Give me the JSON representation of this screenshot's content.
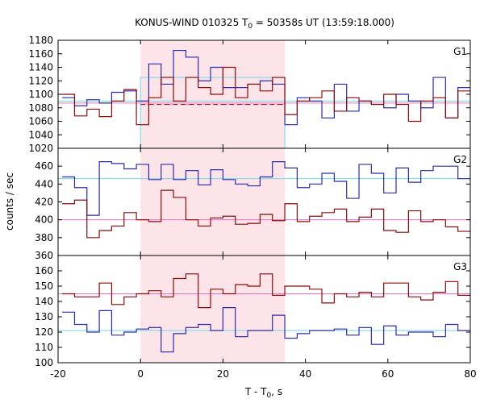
{
  "title": {
    "prefix": "KONUS-WIND 010325 T",
    "sub": "0",
    "suffix": " = 50358s UT (13:59:18.000)"
  },
  "xlabel": {
    "prefix": "T - T",
    "sub": "0",
    "suffix": ", s"
  },
  "ylabel": "counts / sec",
  "chart_data": {
    "type": "line",
    "step": true,
    "xlim": [
      -20,
      80
    ],
    "x_ticks": [
      -20,
      0,
      20,
      40,
      60,
      80
    ],
    "bin_edges": [
      -19,
      -16,
      -13,
      -10,
      -7,
      -4,
      -1,
      2,
      5,
      8,
      11,
      14,
      17,
      20,
      23,
      26,
      29,
      32,
      35,
      38,
      41,
      44,
      47,
      50,
      53,
      56,
      59,
      62,
      65,
      68,
      71,
      74,
      77,
      80
    ],
    "shaded_interval": [
      0,
      35
    ],
    "panels": [
      {
        "label": "G1",
        "ylim": [
          1020,
          1180
        ],
        "y_ticks": [
          1020,
          1040,
          1060,
          1080,
          1100,
          1120,
          1140,
          1160,
          1180
        ],
        "series": [
          {
            "color": "#2b2bb0",
            "values": [
              1095,
              1083,
              1092,
              1087,
              1103,
              1105,
              1090,
              1145,
              1115,
              1165,
              1155,
              1120,
              1140,
              1110,
              1110,
              1115,
              1120,
              1115,
              1055,
              1095,
              1090,
              1065,
              1115,
              1075,
              1090,
              1085,
              1080,
              1100,
              1090,
              1080,
              1125,
              1065,
              1110
            ]
          },
          {
            "color": "#8b0a0a",
            "values": [
              1100,
              1068,
              1078,
              1067,
              1090,
              1107,
              1055,
              1095,
              1125,
              1090,
              1125,
              1110,
              1100,
              1140,
              1095,
              1115,
              1105,
              1125,
              1070,
              1090,
              1095,
              1105,
              1075,
              1095,
              1090,
              1085,
              1100,
              1085,
              1060,
              1090,
              1095,
              1065,
              1105
            ]
          }
        ],
        "background_levels": [
          {
            "color": "#e873c8",
            "value": 1085,
            "dash": "4,3",
            "interval": [
              0,
              35
            ]
          },
          {
            "color": "#8b0a0a",
            "value": 1085,
            "dash": "6,4",
            "interval": [
              0,
              35
            ]
          },
          {
            "color": "#70d8ec",
            "value": 1125,
            "dash": "",
            "interval": [
              0,
              35
            ],
            "box": true
          },
          {
            "color": "#70d8ec",
            "value": 1090,
            "dash": "",
            "interval": [
              -20,
              80
            ]
          },
          {
            "color": "#e873c8",
            "value": 1087,
            "dash": "",
            "interval": [
              -20,
              80
            ]
          }
        ]
      },
      {
        "label": "G2",
        "ylim": [
          360,
          480
        ],
        "y_ticks": [
          360,
          380,
          400,
          420,
          440,
          460
        ],
        "series": [
          {
            "color": "#2b2bb0",
            "values": [
              448,
              436,
              405,
              465,
              463,
              457,
              462,
              445,
              462,
              445,
              455,
              439,
              456,
              445,
              440,
              438,
              448,
              465,
              458,
              436,
              440,
              452,
              443,
              424,
              462,
              452,
              430,
              458,
              442,
              455,
              460,
              460,
              446
            ]
          },
          {
            "color": "#8b0a0a",
            "values": [
              418,
              422,
              380,
              388,
              393,
              408,
              400,
              398,
              433,
              425,
              400,
              393,
              402,
              404,
              395,
              396,
              406,
              399,
              418,
              398,
              404,
              408,
              412,
              398,
              403,
              412,
              388,
              386,
              410,
              398,
              400,
              392,
              387
            ]
          }
        ],
        "background_levels": [
          {
            "color": "#70d8ec",
            "value": 446,
            "dash": "",
            "interval": [
              -20,
              80
            ]
          },
          {
            "color": "#e873c8",
            "value": 400,
            "dash": "",
            "interval": [
              -20,
              80
            ]
          }
        ]
      },
      {
        "label": "G3",
        "ylim": [
          100,
          170
        ],
        "y_ticks": [
          100,
          110,
          120,
          130,
          140,
          150,
          160
        ],
        "series": [
          {
            "color": "#2b2bb0",
            "values": [
              133,
              125,
              120,
              134,
              118,
              120,
              122,
              123,
              107,
              119,
              123,
              125,
              121,
              136,
              117,
              121,
              121,
              131,
              116,
              119,
              121,
              121,
              122,
              118,
              123,
              112,
              124,
              118,
              120,
              120,
              117,
              125,
              121
            ]
          },
          {
            "color": "#8b0a0a",
            "values": [
              145,
              143,
              143,
              152,
              138,
              143,
              145,
              147,
              143,
              155,
              158,
              136,
              148,
              145,
              151,
              150,
              158,
              144,
              150,
              150,
              148,
              139,
              145,
              143,
              146,
              143,
              152,
              152,
              143,
              141,
              146,
              153,
              144
            ]
          }
        ],
        "background_levels": [
          {
            "color": "#70d8ec",
            "value": 121,
            "dash": "",
            "interval": [
              -20,
              80
            ]
          },
          {
            "color": "#e873c8",
            "value": 145,
            "dash": "",
            "interval": [
              -20,
              80
            ]
          }
        ]
      }
    ]
  },
  "colors": {
    "shade": "#fde4e8",
    "blue": "#2b2bb0",
    "red": "#8b0a0a",
    "cyan": "#70d8ec",
    "pink": "#e873c8"
  }
}
